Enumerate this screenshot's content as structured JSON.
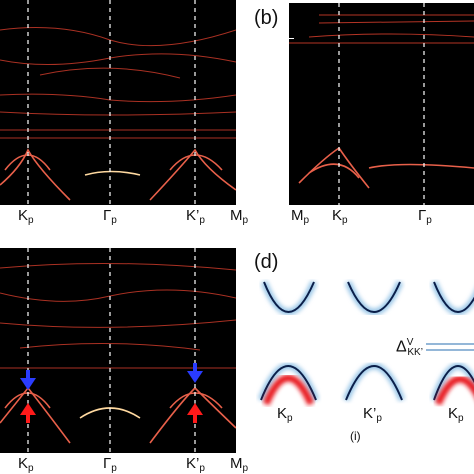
{
  "panel_b_label": "(b)",
  "panel_d_label": "(d)",
  "sub_caption": "(i)",
  "panel_a_ticks": [
    {
      "main": "K",
      "sub": "p"
    },
    {
      "main": "Γ",
      "sub": "p"
    },
    {
      "main": "K’",
      "sub": "p"
    },
    {
      "main": "M",
      "sub": "p"
    }
  ],
  "panel_b_ticks": [
    {
      "main": "M",
      "sub": "p"
    },
    {
      "main": "K",
      "sub": "p"
    },
    {
      "main": "Γ",
      "sub": "p"
    }
  ],
  "panel_c_ticks": [
    {
      "main": "K",
      "sub": "p"
    },
    {
      "main": "Γ",
      "sub": "p"
    },
    {
      "main": "K’",
      "sub": "p"
    },
    {
      "main": "M",
      "sub": "p"
    }
  ],
  "panel_d_ticks": [
    {
      "main": "K",
      "sub": "p"
    },
    {
      "main": "K’",
      "sub": "p"
    },
    {
      "main": "K",
      "sub": "p"
    }
  ],
  "delta_label": {
    "main": "Δ",
    "sup": "V",
    "sub": "KK’"
  },
  "colors": {
    "band": "#e0503a",
    "bright": "#ffd9a0",
    "blue_arrow": "#2a3cff",
    "red_arrow": "#ff1a1a",
    "navy": "#0b1f4a",
    "red_band": "#e8141e"
  }
}
